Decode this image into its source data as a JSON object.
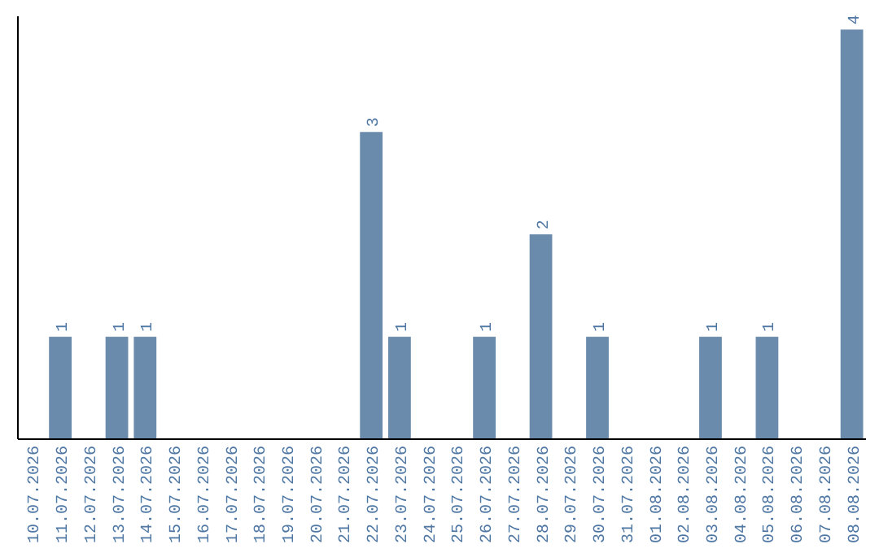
{
  "chart_data": {
    "type": "bar",
    "categories": [
      "10.07.2026",
      "11.07.2026",
      "12.07.2026",
      "13.07.2026",
      "14.07.2026",
      "15.07.2026",
      "16.07.2026",
      "17.07.2026",
      "18.07.2026",
      "19.07.2026",
      "20.07.2026",
      "21.07.2026",
      "22.07.2026",
      "23.07.2026",
      "24.07.2026",
      "25.07.2026",
      "26.07.2026",
      "27.07.2026",
      "28.07.2026",
      "29.07.2026",
      "30.07.2026",
      "31.07.2026",
      "01.08.2026",
      "02.08.2026",
      "03.08.2026",
      "04.08.2026",
      "05.08.2026",
      "06.08.2026",
      "07.08.2026",
      "08.08.2026"
    ],
    "values": [
      0,
      1,
      0,
      1,
      1,
      0,
      0,
      0,
      0,
      0,
      0,
      0,
      3,
      1,
      0,
      0,
      1,
      0,
      2,
      0,
      1,
      0,
      0,
      0,
      1,
      0,
      1,
      0,
      0,
      4
    ],
    "value_labels": [
      null,
      "1",
      null,
      "1",
      "1",
      null,
      null,
      null,
      null,
      null,
      null,
      null,
      "3",
      "1",
      null,
      null,
      "1",
      null,
      "2",
      null,
      "1",
      null,
      null,
      null,
      "1",
      null,
      "1",
      null,
      null,
      "4"
    ],
    "color": "#6a8bab",
    "ylim": [
      0,
      4.13
    ],
    "tick_labels": "x"
  }
}
